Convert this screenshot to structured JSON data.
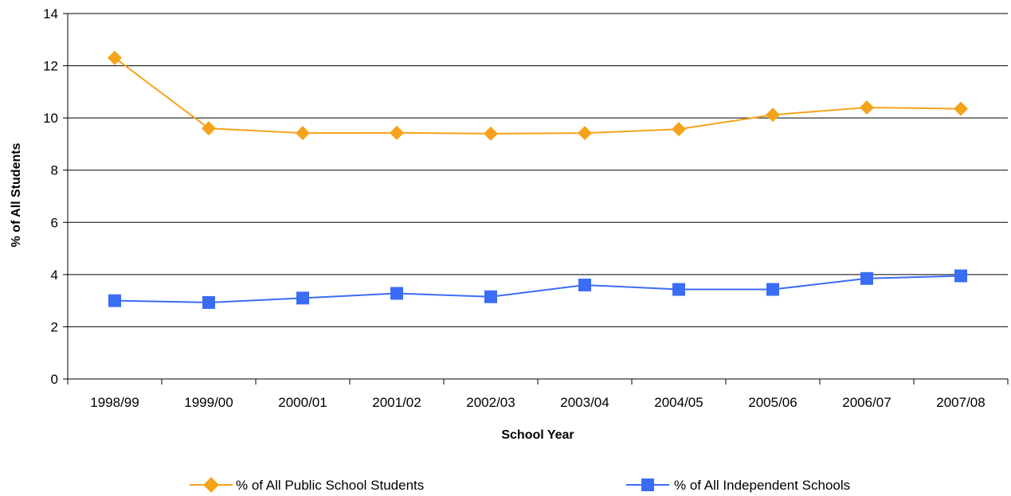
{
  "chart_data": {
    "type": "line",
    "title": "",
    "xlabel": "School Year",
    "ylabel": "% of All Students",
    "categories": [
      "1998/99",
      "1999/00",
      "2000/01",
      "2001/02",
      "2002/03",
      "2003/04",
      "2004/05",
      "2005/06",
      "2006/07",
      "2007/08"
    ],
    "ylim": [
      0,
      14
    ],
    "yticks": [
      0,
      2,
      4,
      6,
      8,
      10,
      12,
      14
    ],
    "grid": true,
    "legend_position": "bottom",
    "series": [
      {
        "name": "% of All Public School Students",
        "values": [
          12.3,
          9.6,
          9.42,
          9.43,
          9.4,
          9.42,
          9.57,
          10.12,
          10.4,
          10.35
        ],
        "color": "#F5A31A",
        "marker": "diamond"
      },
      {
        "name": "% of All Independent Schools",
        "values": [
          3.0,
          2.93,
          3.1,
          3.28,
          3.15,
          3.6,
          3.43,
          3.43,
          3.85,
          3.95
        ],
        "color": "#3B6CF6",
        "marker": "square"
      }
    ]
  }
}
